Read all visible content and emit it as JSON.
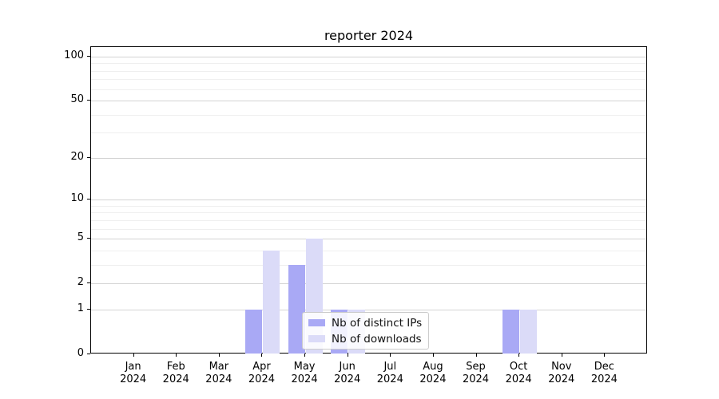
{
  "title": "reporter 2024",
  "colors": {
    "distinct_ips_bar": "#a9a9f5",
    "downloads_bar": "#dbdbf8",
    "grid_major": "#d4d4d4",
    "grid_minor": "#efefef",
    "spine": "#000000"
  },
  "legend": {
    "items": [
      {
        "label": "Nb of distinct IPs"
      },
      {
        "label": "Nb of downloads"
      }
    ]
  },
  "chart_data": {
    "type": "bar",
    "title": "reporter 2024",
    "categories": [
      "Jan",
      "Feb",
      "Mar",
      "Apr",
      "May",
      "Jun",
      "Jul",
      "Aug",
      "Sep",
      "Oct",
      "Nov",
      "Dec"
    ],
    "year_label": "2024",
    "series": [
      {
        "name": "Nb of distinct IPs",
        "color": "#a9a9f5",
        "values": [
          0,
          0,
          0,
          1,
          3,
          1,
          0,
          0,
          0,
          1,
          0,
          0
        ]
      },
      {
        "name": "Nb of downloads",
        "color": "#dbdbf8",
        "values": [
          0,
          0,
          0,
          4,
          5,
          1,
          0,
          0,
          0,
          1,
          0,
          0
        ]
      }
    ],
    "xlabel": "",
    "ylabel": "",
    "yscale": "log10(1+y)",
    "yticks": [
      0,
      1,
      2,
      5,
      10,
      20,
      50,
      100
    ],
    "yticks_minor": [
      3,
      4,
      6,
      7,
      8,
      9,
      30,
      40,
      60,
      70,
      80,
      90
    ],
    "ylim": [
      0,
      113
    ],
    "grid": true,
    "legend_position": "lower center inside"
  }
}
